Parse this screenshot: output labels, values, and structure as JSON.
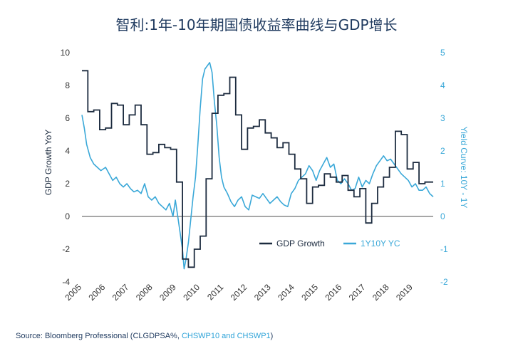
{
  "title": "智利:1年-10年期国债收益率曲线与GDP增长",
  "source": {
    "prefix": "Source: Bloomberg Professional (CLGDPSA%, ",
    "highlight": "CHSWP10 and CHSWP1",
    "suffix": ")"
  },
  "colors": {
    "gdp": "#1c2b3f",
    "yc": "#3aa8d8",
    "title": "#1f3a5f",
    "zero": "#8a8a8a"
  },
  "chart_data": {
    "type": "line",
    "title": "智利:1年-10年期国债收益率曲线与GDP增长",
    "xlabel": "",
    "y_left_label": "GDP Growth YoY",
    "y_right_label": "Yield Curve: 10Y - 1Y",
    "x_range": [
      2005,
      2019.85
    ],
    "y_left_range": [
      -4,
      10
    ],
    "y_right_range": [
      -2,
      5
    ],
    "x_ticks": [
      "2005",
      "2006",
      "2007",
      "2008",
      "2009",
      "2010",
      "2011",
      "2012",
      "2013",
      "2014",
      "2015",
      "2016",
      "2017",
      "2018",
      "2019"
    ],
    "y_left_ticks": [
      "-4",
      "-2",
      "0",
      "2",
      "4",
      "6",
      "8",
      "10"
    ],
    "y_right_ticks": [
      "-2",
      "-1",
      "0",
      "1",
      "2",
      "3",
      "4",
      "5"
    ],
    "legend": {
      "placement": "center-right",
      "entries": [
        "GDP Growth",
        "1Y10Y YC"
      ]
    },
    "series": [
      {
        "name": "GDP Growth",
        "axis": "left",
        "step": true,
        "x": [
          2005.0,
          2005.25,
          2005.5,
          2005.75,
          2006.0,
          2006.25,
          2006.5,
          2006.75,
          2007.0,
          2007.25,
          2007.5,
          2007.75,
          2008.0,
          2008.25,
          2008.5,
          2008.75,
          2009.0,
          2009.25,
          2009.5,
          2009.75,
          2010.0,
          2010.25,
          2010.5,
          2010.75,
          2011.0,
          2011.25,
          2011.5,
          2011.75,
          2012.0,
          2012.25,
          2012.5,
          2012.75,
          2013.0,
          2013.25,
          2013.5,
          2013.75,
          2014.0,
          2014.25,
          2014.5,
          2014.75,
          2015.0,
          2015.25,
          2015.5,
          2015.75,
          2016.0,
          2016.25,
          2016.5,
          2016.75,
          2017.0,
          2017.25,
          2017.5,
          2017.75,
          2018.0,
          2018.25,
          2018.5,
          2018.75,
          2019.0,
          2019.25,
          2019.5,
          2019.85
        ],
        "y": [
          8.9,
          6.4,
          6.5,
          5.3,
          5.4,
          6.9,
          6.8,
          5.6,
          6.2,
          6.8,
          5.6,
          3.8,
          3.9,
          4.4,
          4.2,
          4.1,
          2.1,
          -2.6,
          -3.1,
          -2.0,
          -1.2,
          2.3,
          6.3,
          7.4,
          7.5,
          8.5,
          6.2,
          4.1,
          5.4,
          5.5,
          5.9,
          5.1,
          4.8,
          4.2,
          4.5,
          3.8,
          2.9,
          2.3,
          0.8,
          1.8,
          1.9,
          2.6,
          2.4,
          2.1,
          2.5,
          1.6,
          1.2,
          1.7,
          -0.4,
          0.8,
          1.8,
          2.4,
          3.0,
          5.2,
          5.0,
          2.9,
          3.3,
          2.0,
          2.1,
          2.1
        ]
      },
      {
        "name": "1Y10Y YC",
        "axis": "right",
        "step": false,
        "x": [
          2005.0,
          2005.1,
          2005.2,
          2005.35,
          2005.5,
          2005.65,
          2005.8,
          2006.0,
          2006.15,
          2006.3,
          2006.45,
          2006.6,
          2006.75,
          2006.9,
          2007.05,
          2007.2,
          2007.35,
          2007.5,
          2007.65,
          2007.8,
          2007.95,
          2008.1,
          2008.25,
          2008.4,
          2008.55,
          2008.7,
          2008.85,
          2008.95,
          2009.05,
          2009.15,
          2009.25,
          2009.32,
          2009.4,
          2009.5,
          2009.6,
          2009.7,
          2009.8,
          2009.9,
          2010.0,
          2010.1,
          2010.2,
          2010.3,
          2010.4,
          2010.5,
          2010.6,
          2010.7,
          2010.8,
          2010.9,
          2011.0,
          2011.15,
          2011.3,
          2011.45,
          2011.6,
          2011.75,
          2011.9,
          2012.05,
          2012.2,
          2012.35,
          2012.5,
          2012.65,
          2012.8,
          2012.95,
          2013.1,
          2013.25,
          2013.4,
          2013.55,
          2013.7,
          2013.85,
          2014.0,
          2014.15,
          2014.3,
          2014.45,
          2014.6,
          2014.75,
          2014.9,
          2015.05,
          2015.2,
          2015.35,
          2015.5,
          2015.65,
          2015.8,
          2015.95,
          2016.1,
          2016.25,
          2016.4,
          2016.55,
          2016.7,
          2016.85,
          2017.0,
          2017.15,
          2017.3,
          2017.45,
          2017.6,
          2017.75,
          2017.9,
          2018.05,
          2018.2,
          2018.35,
          2018.5,
          2018.65,
          2018.8,
          2018.95,
          2019.1,
          2019.25,
          2019.4,
          2019.55,
          2019.7,
          2019.85
        ],
        "y": [
          3.1,
          2.7,
          2.2,
          1.8,
          1.6,
          1.5,
          1.4,
          1.5,
          1.3,
          1.1,
          1.2,
          1.0,
          0.9,
          1.0,
          0.85,
          0.75,
          0.8,
          0.7,
          1.0,
          0.6,
          0.5,
          0.6,
          0.4,
          0.3,
          0.2,
          0.4,
          0.0,
          0.5,
          0.0,
          -0.5,
          -1.0,
          -1.6,
          -1.3,
          -0.8,
          -0.1,
          0.6,
          1.2,
          2.2,
          3.3,
          4.2,
          4.5,
          4.6,
          4.7,
          4.4,
          3.5,
          2.8,
          1.8,
          1.2,
          0.9,
          0.7,
          0.45,
          0.3,
          0.5,
          0.6,
          0.3,
          0.2,
          0.65,
          0.6,
          0.55,
          0.7,
          0.55,
          0.4,
          0.5,
          0.6,
          0.45,
          0.35,
          0.3,
          0.7,
          0.85,
          1.1,
          1.2,
          1.3,
          1.55,
          1.4,
          1.1,
          1.4,
          1.6,
          1.8,
          1.5,
          1.6,
          1.1,
          1.0,
          1.15,
          1.0,
          0.8,
          0.85,
          1.2,
          0.9,
          1.1,
          1.0,
          1.3,
          1.55,
          1.7,
          1.85,
          1.7,
          1.75,
          1.6,
          1.45,
          1.3,
          1.2,
          1.1,
          0.9,
          1.0,
          0.8,
          0.8,
          0.9,
          0.7,
          0.6
        ]
      }
    ]
  }
}
